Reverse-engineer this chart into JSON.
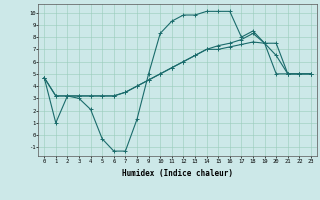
{
  "xlabel": "Humidex (Indice chaleur)",
  "background_color": "#cce8e8",
  "line_color": "#1a6b6b",
  "xlim": [
    -0.5,
    23.5
  ],
  "ylim": [
    -1.7,
    10.7
  ],
  "xticks": [
    0,
    1,
    2,
    3,
    4,
    5,
    6,
    7,
    8,
    9,
    10,
    11,
    12,
    13,
    14,
    15,
    16,
    17,
    18,
    19,
    20,
    21,
    22,
    23
  ],
  "yticks": [
    -1,
    0,
    1,
    2,
    3,
    4,
    5,
    6,
    7,
    8,
    9,
    10
  ],
  "series": [
    [
      4.7,
      1.0,
      3.2,
      3.0,
      2.1,
      -0.3,
      -1.3,
      -1.3,
      1.3,
      5.0,
      8.3,
      9.3,
      9.8,
      9.8,
      10.1,
      10.1,
      10.1,
      8.0,
      8.5,
      7.5,
      6.5,
      5.0,
      5.0,
      5.0
    ],
    [
      4.7,
      3.2,
      3.2,
      3.2,
      3.2,
      3.2,
      3.2,
      3.5,
      4.0,
      4.5,
      5.0,
      5.5,
      6.0,
      6.5,
      7.0,
      7.3,
      7.5,
      7.8,
      8.3,
      7.5,
      7.5,
      5.0,
      5.0,
      5.0
    ],
    [
      4.7,
      3.2,
      3.2,
      3.2,
      3.2,
      3.2,
      3.2,
      3.5,
      4.0,
      4.5,
      5.0,
      5.5,
      6.0,
      6.5,
      7.0,
      7.0,
      7.2,
      7.4,
      7.6,
      7.5,
      5.0,
      5.0,
      5.0,
      5.0
    ]
  ]
}
